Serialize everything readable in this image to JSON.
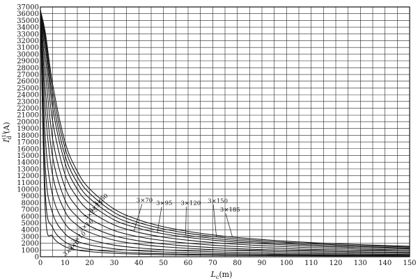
{
  "chart_data": {
    "type": "line",
    "xlabel": "Lc(m)",
    "ylabel": "I(1)d (A)",
    "xlabel_parts": {
      "main": "L",
      "sub": "c",
      "unit": "(m)"
    },
    "ylabel_parts": {
      "main": "I",
      "sup": "(1)",
      "sub": "d",
      "unit": " (A)"
    },
    "xlim": [
      0,
      150
    ],
    "ylim": [
      0,
      37000
    ],
    "x_ticks": [
      0,
      10,
      20,
      30,
      40,
      50,
      60,
      70,
      80,
      90,
      100,
      110,
      120,
      130,
      140,
      150
    ],
    "y_ticks": [
      0,
      1000,
      2000,
      3000,
      4000,
      5000,
      6000,
      7000,
      8000,
      9000,
      10000,
      11000,
      12000,
      13000,
      14000,
      15000,
      16000,
      17000,
      18000,
      19000,
      20000,
      21000,
      22000,
      23000,
      24000,
      25000,
      26000,
      27000,
      28000,
      29000,
      30000,
      31000,
      32000,
      33000,
      34000,
      35000,
      36000,
      37000
    ],
    "x_minor_step": 5,
    "grid": true,
    "x": [
      0,
      2,
      5,
      10,
      15,
      20,
      30,
      40,
      50,
      60,
      70,
      80,
      100,
      120,
      150
    ],
    "series": [
      {
        "name": "3×4",
        "label_at": [
          12,
          600
        ],
        "values": [
          36500,
          6700,
          3000,
          1500,
          1000,
          760,
          500,
          380,
          300,
          250,
          215,
          190,
          150,
          125,
          100
        ]
      },
      {
        "name": "3×6",
        "label_at": [
          14,
          1500
        ],
        "values": [
          36500,
          9300,
          4300,
          2200,
          1500,
          1100,
          750,
          560,
          450,
          375,
          320,
          280,
          225,
          190,
          150
        ]
      },
      {
        "name": "3×10",
        "label_at": [
          16,
          2600
        ],
        "values": [
          36500,
          13200,
          6400,
          3400,
          2300,
          1750,
          1170,
          880,
          710,
          590,
          500,
          440,
          350,
          295,
          235
        ]
      },
      {
        "name": "3×16",
        "label_at": [
          19,
          4400
        ],
        "values": [
          36500,
          17600,
          9000,
          4900,
          3350,
          2550,
          1720,
          1300,
          1040,
          870,
          750,
          650,
          520,
          435,
          350
        ]
      },
      {
        "name": "3×25",
        "label_at": [
          21,
          6200
        ],
        "values": [
          36500,
          21800,
          12000,
          6700,
          4650,
          3600,
          2450,
          1850,
          1480,
          1240,
          1060,
          930,
          745,
          620,
          500
        ]
      },
      {
        "name": "3×35",
        "label_at": [
          23,
          7200
        ],
        "values": [
          36500,
          24800,
          14700,
          8400,
          5900,
          4550,
          3100,
          2350,
          1890,
          1580,
          1360,
          1190,
          950,
          795,
          640
        ]
      },
      {
        "name": "3×50",
        "label_at": [
          25,
          8200
        ],
        "values": [
          36500,
          27600,
          17400,
          10300,
          7300,
          5650,
          3880,
          2950,
          2380,
          2000,
          1720,
          1510,
          1210,
          1010,
          810
        ]
      },
      {
        "name": "3×70",
        "label_at": [
          39,
          8100
        ],
        "values": [
          36500,
          29700,
          20000,
          12200,
          8750,
          6800,
          4700,
          3600,
          2900,
          2440,
          2100,
          1840,
          1480,
          1240,
          990
        ]
      },
      {
        "name": "3×95",
        "label_at": [
          47,
          7700
        ],
        "values": [
          36500,
          31200,
          22000,
          13900,
          10000,
          7900,
          5450,
          4200,
          3400,
          2860,
          2460,
          2160,
          1740,
          1450,
          1165
        ]
      },
      {
        "name": "3×120",
        "label_at": [
          57,
          7700
        ],
        "values": [
          36500,
          32000,
          23300,
          15000,
          10950,
          8650,
          6000,
          4630,
          3760,
          3160,
          2730,
          2400,
          1930,
          1615,
          1295
        ]
      },
      {
        "name": "3×150",
        "label_at": [
          68,
          8000
        ],
        "values": [
          36500,
          32700,
          24500,
          16100,
          11850,
          9400,
          6550,
          5050,
          4120,
          3470,
          3000,
          2640,
          2120,
          1780,
          1430
        ]
      },
      {
        "name": "3×185",
        "label_at": [
          73,
          6700
        ],
        "values": [
          36500,
          33200,
          25500,
          17000,
          12650,
          10050,
          7050,
          5450,
          4440,
          3750,
          3240,
          2850,
          2300,
          1930,
          1550
        ]
      }
    ]
  }
}
